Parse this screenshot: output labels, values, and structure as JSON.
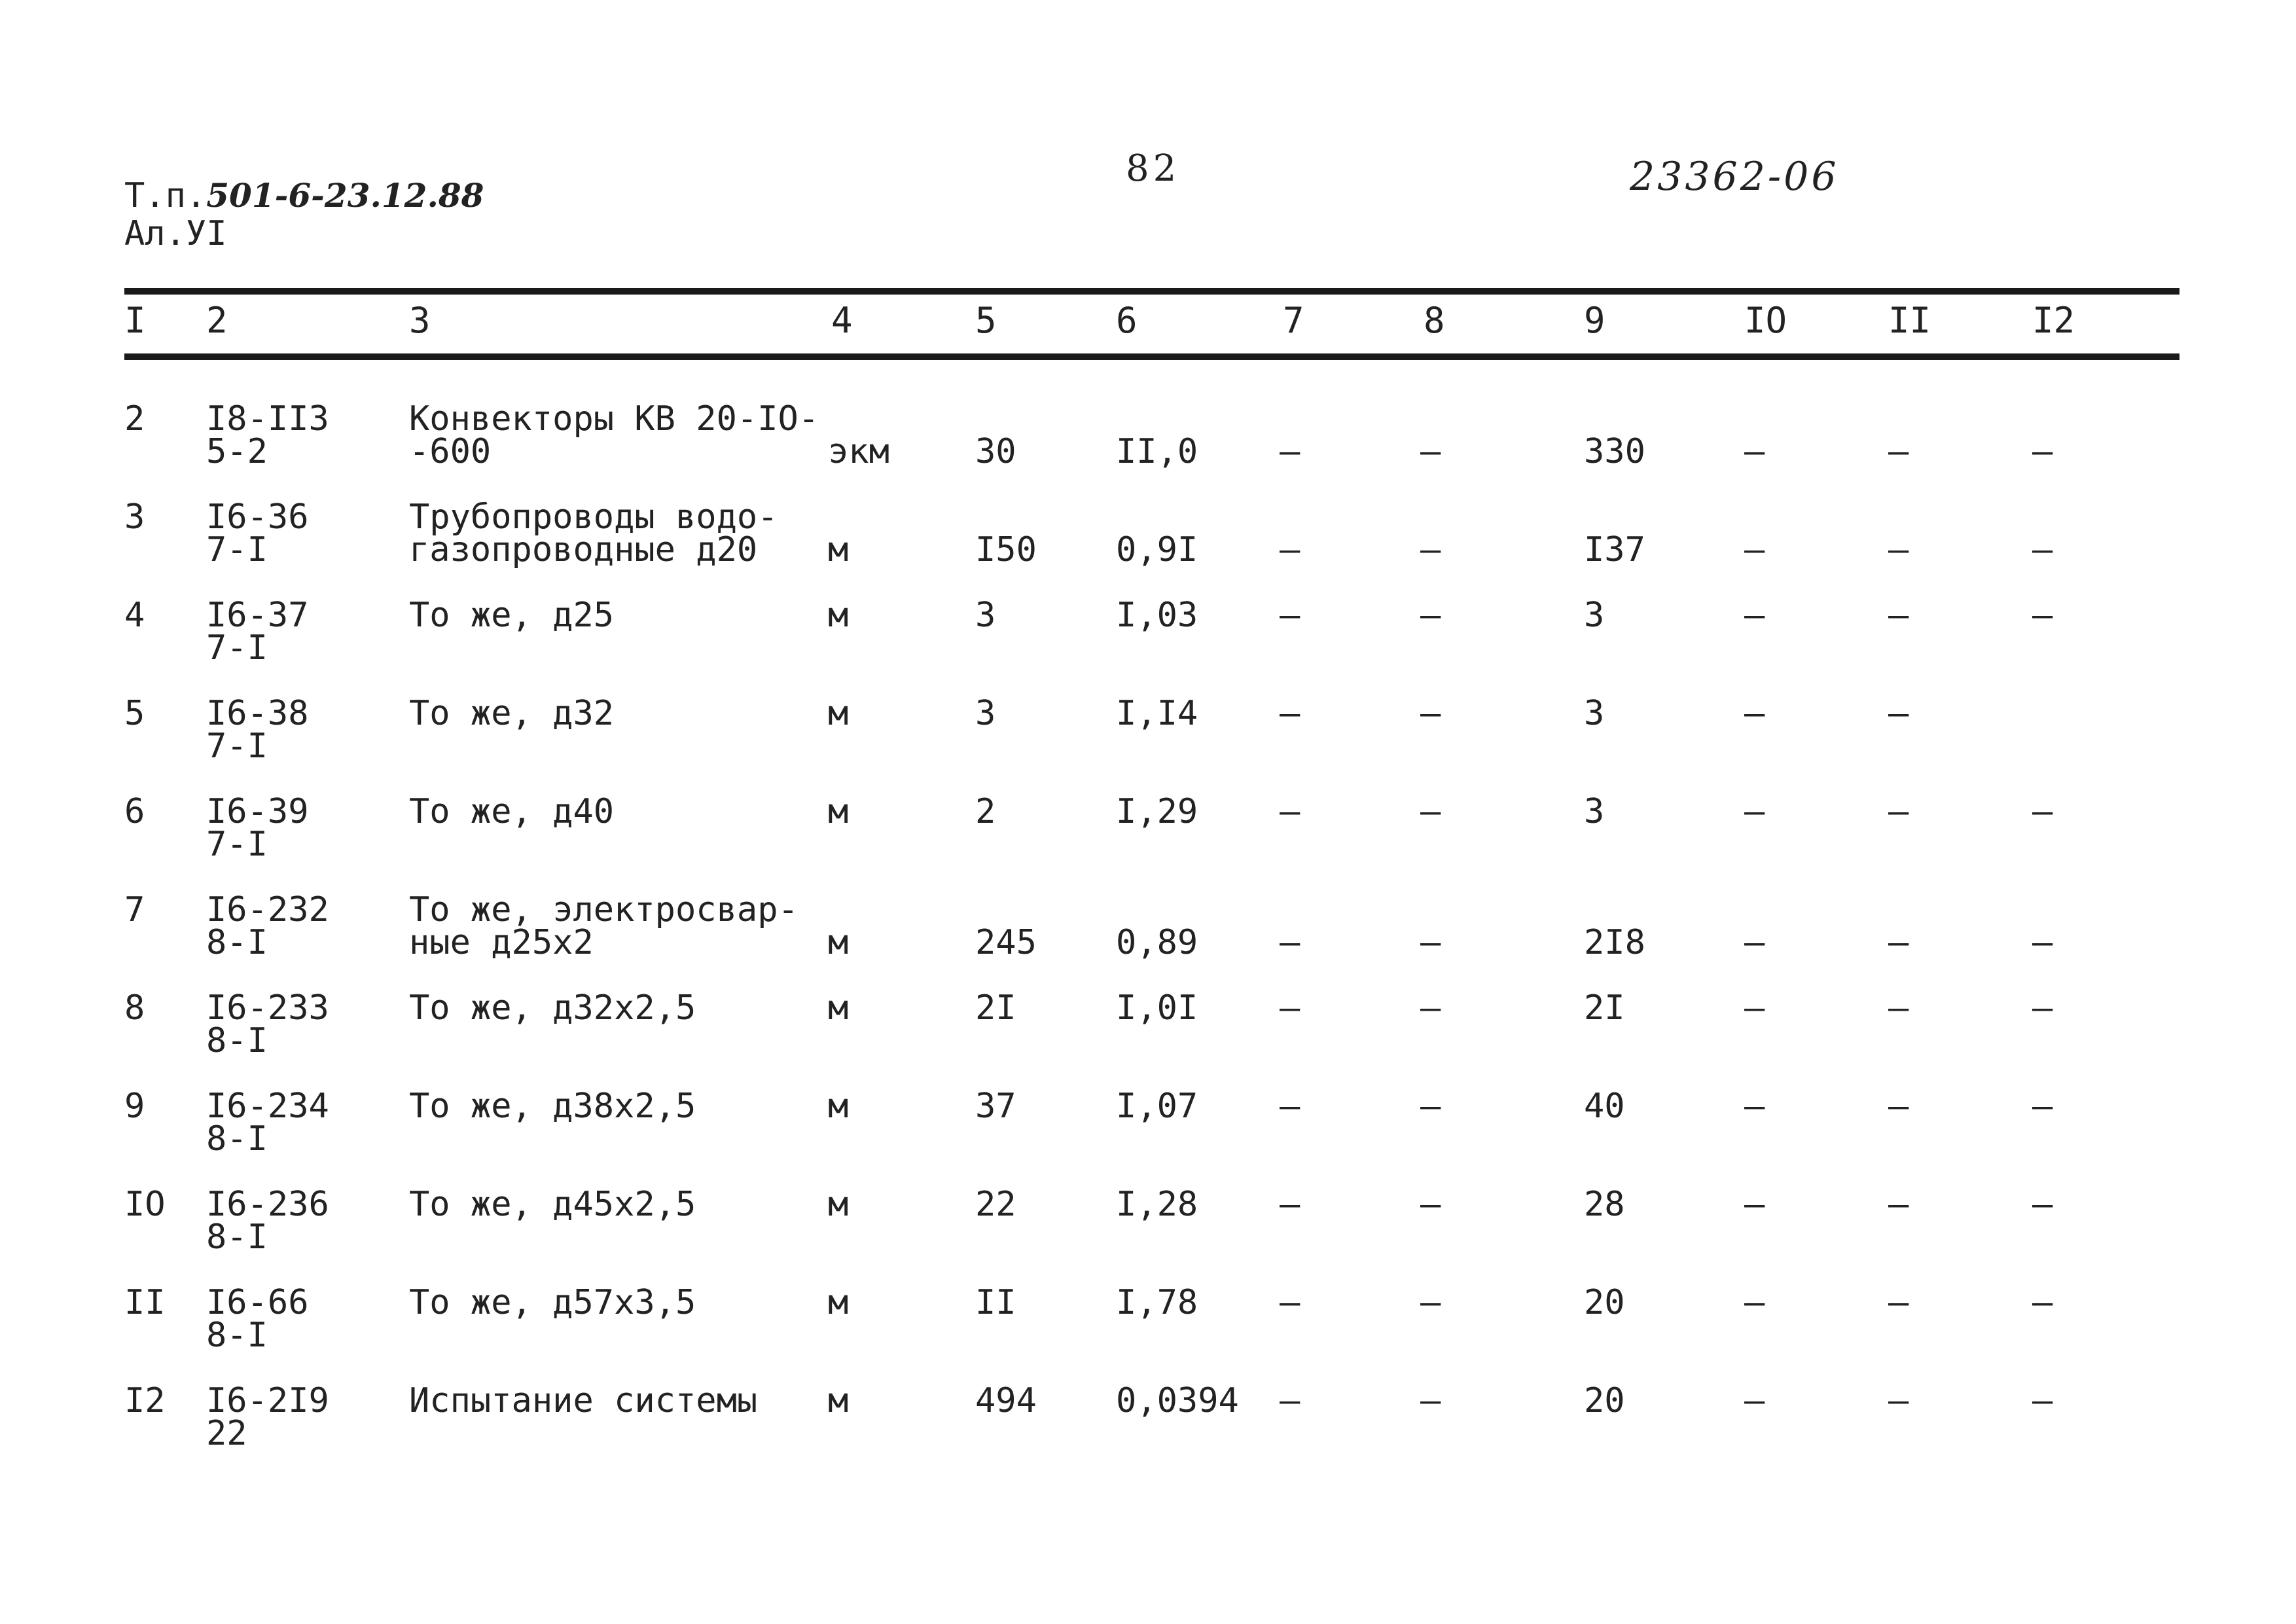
{
  "header": {
    "tp_prefix": "Т.п.",
    "tp_code": "501-6-23.12.88",
    "album": "Ал.УI",
    "page_number": "82",
    "doc_code": "23362-06"
  },
  "columns": [
    "I",
    "2",
    "3",
    "4",
    "5",
    "6",
    "7",
    "8",
    "9",
    "IO",
    "II",
    "I2"
  ],
  "rows": [
    {
      "n": "2",
      "code1": "I8-II3",
      "code2": "5-2",
      "name1": "Конвекторы КВ 20-IO-",
      "name2": "-600",
      "unit": "экм",
      "qty": "30",
      "price": "II,0",
      "c7": "–",
      "c8": "–",
      "c9": "330",
      "c10": "–",
      "c11": "–",
      "c12": "–"
    },
    {
      "n": "3",
      "code1": "I6-36",
      "code2": "7-I",
      "name1": "Трубопроводы водо-",
      "name2": "газопроводные д20",
      "unit": "м",
      "qty": "I50",
      "price": "0,9I",
      "c7": "–",
      "c8": "–",
      "c9": "I37",
      "c10": "–",
      "c11": "–",
      "c12": "–"
    },
    {
      "n": "4",
      "code1": "I6-37",
      "code2": "7-I",
      "name1": "То же, д25",
      "name2": "",
      "unit": "м",
      "qty": "3",
      "price": "I,03",
      "c7": "–",
      "c8": "–",
      "c9": "3",
      "c10": "–",
      "c11": "–",
      "c12": "–"
    },
    {
      "n": "5",
      "code1": "I6-38",
      "code2": "7-I",
      "name1": "То же, д32",
      "name2": "",
      "unit": "м",
      "qty": "3",
      "price": "I,I4",
      "c7": "–",
      "c8": "–",
      "c9": "3",
      "c10": "–",
      "c11": "–",
      "c12": ""
    },
    {
      "n": "6",
      "code1": "I6-39",
      "code2": "7-I",
      "name1": "То же, д40",
      "name2": "",
      "unit": "м",
      "qty": "2",
      "price": "I,29",
      "c7": "–",
      "c8": "–",
      "c9": "3",
      "c10": "–",
      "c11": "–",
      "c12": "–"
    },
    {
      "n": "7",
      "code1": "I6-232",
      "code2": "8-I",
      "name1": "То же, электросвар-",
      "name2": "ные д25х2",
      "unit": "м",
      "qty": "245",
      "price": "0,89",
      "c7": "–",
      "c8": "–",
      "c9": "2I8",
      "c10": "–",
      "c11": "–",
      "c12": "–"
    },
    {
      "n": "8",
      "code1": "I6-233",
      "code2": "8-I",
      "name1": "То же, д32х2,5",
      "name2": "",
      "unit": "м",
      "qty": "2I",
      "price": "I,0I",
      "c7": "–",
      "c8": "–",
      "c9": "2I",
      "c10": "–",
      "c11": "–",
      "c12": "–"
    },
    {
      "n": "9",
      "code1": "I6-234",
      "code2": "8-I",
      "name1": "То же, д38х2,5",
      "name2": "",
      "unit": "м",
      "qty": "37",
      "price": "I,07",
      "c7": "–",
      "c8": "–",
      "c9": "40",
      "c10": "–",
      "c11": "–",
      "c12": "–"
    },
    {
      "n": "IO",
      "code1": "I6-236",
      "code2": "8-I",
      "name1": "То же, д45х2,5",
      "name2": "",
      "unit": "м",
      "qty": "22",
      "price": "I,28",
      "c7": "–",
      "c8": "–",
      "c9": "28",
      "c10": "–",
      "c11": "–",
      "c12": "–"
    },
    {
      "n": "II",
      "code1": "I6-66",
      "code2": "8-I",
      "name1": "То же, д57х3,5",
      "name2": "",
      "unit": "м",
      "qty": "II",
      "price": "I,78",
      "c7": "–",
      "c8": "–",
      "c9": "20",
      "c10": "–",
      "c11": "–",
      "c12": "–"
    },
    {
      "n": "I2",
      "code1": "I6-2I9",
      "code2": "22",
      "name1": "Испытание системы",
      "name2": "",
      "unit": "м",
      "qty": "494",
      "price": "0,0394",
      "c7": "–",
      "c8": "–",
      "c9": "20",
      "c10": "–",
      "c11": "–",
      "c12": "–"
    }
  ]
}
